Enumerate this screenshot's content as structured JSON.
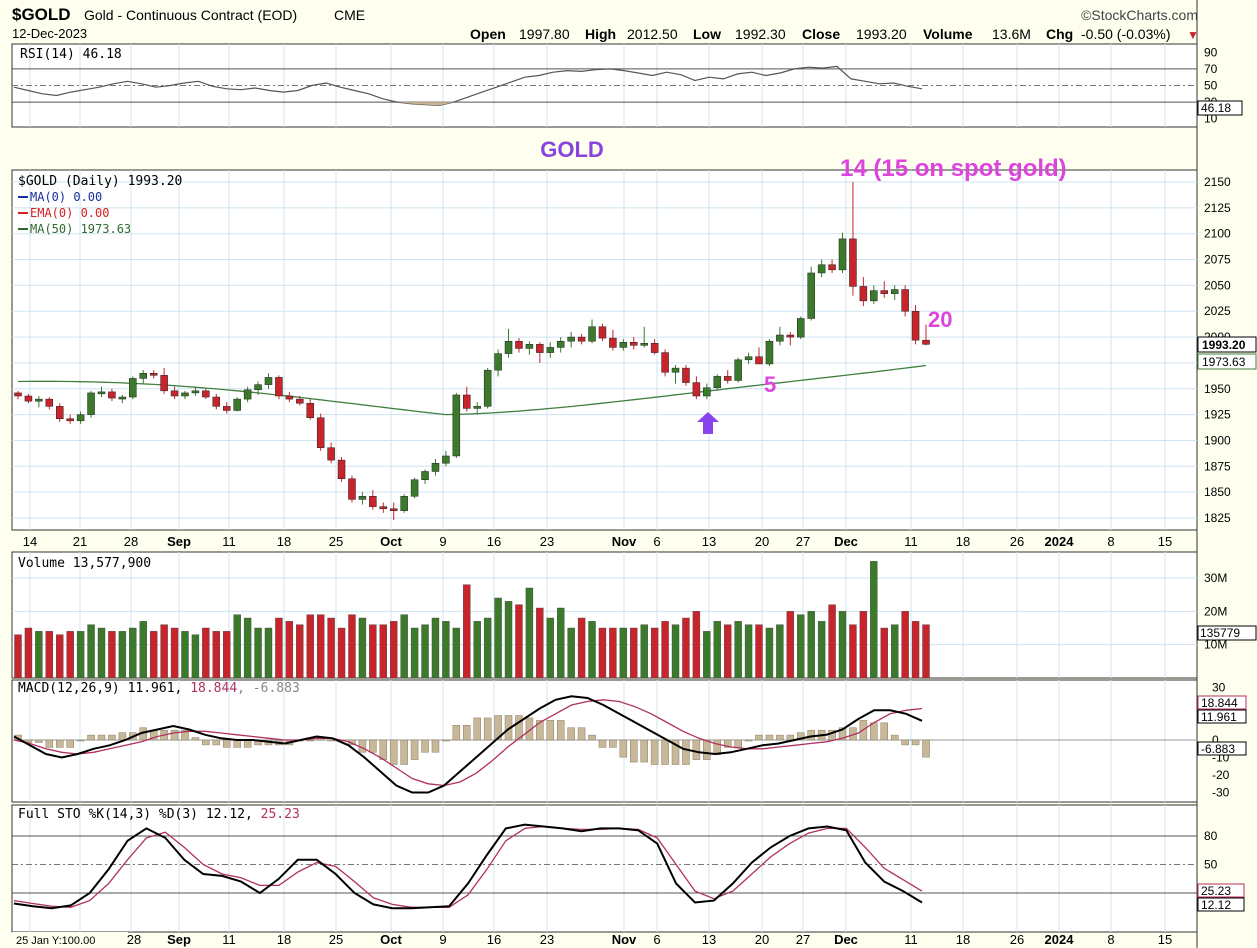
{
  "header": {
    "symbol": "$GOLD",
    "name": "Gold - Continuous Contract (EOD)",
    "exchange": "CME",
    "date": "12-Dec-2023",
    "brand": "©StockCharts.com",
    "open_label": "Open",
    "open": "1997.80",
    "high_label": "High",
    "high": "2012.50",
    "low_label": "Low",
    "low": "1992.30",
    "close_label": "Close",
    "close": "1993.20",
    "volume_label": "Volume",
    "volume": "13.6M",
    "chg_label": "Chg",
    "chg": "-0.50 (-0.03%)",
    "chg_arrow": "▼"
  },
  "annotations": {
    "gold_label": "GOLD",
    "peak_label": "14 (15 on spot gold)",
    "count_20": "20",
    "count_5": "5"
  },
  "rsi": {
    "label": "RSI(14) 46.18",
    "current_tag": "46.18",
    "axis": [
      "90",
      "70",
      "50",
      "30",
      "10"
    ],
    "overbought": 70,
    "oversold": 30
  },
  "price": {
    "legend": [
      "$GOLD (Daily) 1993.20",
      "MA(0) 0.00",
      "EMA(0) 0.00",
      "MA(50) 1973.63"
    ],
    "legend_colors": [
      "#000000",
      "#1a2e9c",
      "#d42020",
      "#2f6b2f"
    ],
    "axis": [
      "2150",
      "2125",
      "2100",
      "2075",
      "2050",
      "2025",
      "2000",
      "1975",
      "1950",
      "1925",
      "1900",
      "1875",
      "1850",
      "1825"
    ],
    "close_tag": "1993.20",
    "ma_tag": "1973.63",
    "up_color": "#3b7a2a",
    "down_color": "#c8242b"
  },
  "dates": [
    "14",
    "21",
    "28",
    "Sep",
    "11",
    "18",
    "25",
    "Oct",
    "9",
    "16",
    "23",
    "Nov",
    "6",
    "13",
    "20",
    "27",
    "Dec",
    "11",
    "18",
    "26",
    "2024",
    "8",
    "15"
  ],
  "bottom_dates": [
    "28",
    "Sep",
    "11",
    "18",
    "25",
    "Oct",
    "9",
    "16",
    "23",
    "Nov",
    "6",
    "13",
    "20",
    "27",
    "Dec",
    "11",
    "18",
    "26",
    "2024",
    "8",
    "15"
  ],
  "bottom_note": "25 Jan Y:100.00",
  "volume": {
    "label": "Volume 13,577,900",
    "axis": [
      "30M",
      "20M",
      "10M"
    ],
    "current_tag": "135779"
  },
  "macd": {
    "label_a": "MACD(12,26,9) 11.961, ",
    "label_b": "18.844",
    "label_c": ", -6.883",
    "axis": [
      "30",
      "0",
      "-10",
      "-20",
      "-30"
    ],
    "tags": [
      "18.844",
      "11.961",
      "-6.883"
    ]
  },
  "sto": {
    "label_a": "Full STO %K(14,3) %D(3) 12.12, ",
    "label_b": "25.23",
    "axis": [
      "80",
      "50",
      "20"
    ],
    "tags": [
      "25.23",
      "12.12"
    ]
  },
  "chart_data": {
    "type": "candlestick",
    "title": "$GOLD Gold - Continuous Contract (EOD) CME",
    "candles_ohlc": [
      [
        1946,
        1948,
        1940,
        1943
      ],
      [
        1943,
        1945,
        1936,
        1938
      ],
      [
        1938,
        1943,
        1932,
        1940
      ],
      [
        1940,
        1942,
        1930,
        1933
      ],
      [
        1933,
        1936,
        1918,
        1921
      ],
      [
        1921,
        1925,
        1916,
        1919
      ],
      [
        1919,
        1928,
        1916,
        1925
      ],
      [
        1925,
        1948,
        1922,
        1946
      ],
      [
        1946,
        1952,
        1942,
        1947
      ],
      [
        1947,
        1950,
        1938,
        1941
      ],
      [
        1941,
        1944,
        1936,
        1942
      ],
      [
        1942,
        1962,
        1940,
        1960
      ],
      [
        1960,
        1968,
        1955,
        1965
      ],
      [
        1965,
        1968,
        1960,
        1963
      ],
      [
        1963,
        1970,
        1945,
        1948
      ],
      [
        1948,
        1952,
        1940,
        1943
      ],
      [
        1943,
        1948,
        1940,
        1946
      ],
      [
        1946,
        1952,
        1943,
        1948
      ],
      [
        1948,
        1950,
        1940,
        1942
      ],
      [
        1942,
        1945,
        1930,
        1933
      ],
      [
        1933,
        1937,
        1926,
        1929
      ],
      [
        1929,
        1942,
        1928,
        1940
      ],
      [
        1940,
        1952,
        1937,
        1949
      ],
      [
        1949,
        1957,
        1944,
        1954
      ],
      [
        1954,
        1965,
        1950,
        1961
      ],
      [
        1961,
        1963,
        1940,
        1943
      ],
      [
        1943,
        1947,
        1937,
        1940
      ],
      [
        1940,
        1943,
        1934,
        1936
      ],
      [
        1936,
        1940,
        1920,
        1922
      ],
      [
        1922,
        1926,
        1890,
        1893
      ],
      [
        1893,
        1898,
        1878,
        1881
      ],
      [
        1881,
        1884,
        1860,
        1863
      ],
      [
        1863,
        1866,
        1840,
        1843
      ],
      [
        1843,
        1850,
        1838,
        1846
      ],
      [
        1846,
        1852,
        1833,
        1836
      ],
      [
        1836,
        1840,
        1830,
        1834
      ],
      [
        1834,
        1840,
        1823,
        1832
      ],
      [
        1832,
        1848,
        1830,
        1846
      ],
      [
        1846,
        1864,
        1844,
        1862
      ],
      [
        1862,
        1872,
        1858,
        1870
      ],
      [
        1870,
        1882,
        1866,
        1878
      ],
      [
        1878,
        1890,
        1875,
        1885
      ],
      [
        1885,
        1946,
        1883,
        1944
      ],
      [
        1944,
        1952,
        1928,
        1931
      ],
      [
        1931,
        1937,
        1925,
        1933
      ],
      [
        1933,
        1970,
        1931,
        1968
      ],
      [
        1968,
        1988,
        1962,
        1984
      ],
      [
        1984,
        2008,
        1980,
        1996
      ],
      [
        1996,
        1999,
        1985,
        1989
      ],
      [
        1989,
        1996,
        1983,
        1993
      ],
      [
        1993,
        1995,
        1975,
        1985
      ],
      [
        1985,
        1995,
        1980,
        1990
      ],
      [
        1990,
        2000,
        1985,
        1996
      ],
      [
        1996,
        2005,
        1990,
        2000
      ],
      [
        2000,
        2003,
        1993,
        1996
      ],
      [
        1996,
        2017,
        1994,
        2010
      ],
      [
        2010,
        2013,
        1996,
        1999
      ],
      [
        1999,
        2007,
        1987,
        1990
      ],
      [
        1990,
        1998,
        1987,
        1995
      ],
      [
        1995,
        2000,
        1988,
        1992
      ],
      [
        1992,
        2010,
        1990,
        1994
      ],
      [
        1994,
        1998,
        1983,
        1985
      ],
      [
        1985,
        1988,
        1962,
        1966
      ],
      [
        1966,
        1973,
        1955,
        1970
      ],
      [
        1970,
        1973,
        1953,
        1956
      ],
      [
        1956,
        1962,
        1940,
        1943
      ],
      [
        1943,
        1955,
        1940,
        1951
      ],
      [
        1951,
        1964,
        1948,
        1962
      ],
      [
        1962,
        1968,
        1955,
        1958
      ],
      [
        1958,
        1980,
        1956,
        1978
      ],
      [
        1978,
        1985,
        1974,
        1981
      ],
      [
        1981,
        1990,
        1976,
        1974
      ],
      [
        1974,
        1998,
        1972,
        1996
      ],
      [
        1996,
        2010,
        1992,
        2002
      ],
      [
        2002,
        2005,
        1992,
        2000
      ],
      [
        2000,
        2020,
        1998,
        2018
      ],
      [
        2018,
        2068,
        2016,
        2062
      ],
      [
        2062,
        2075,
        2058,
        2070
      ],
      [
        2070,
        2075,
        2062,
        2065
      ],
      [
        2065,
        2101,
        2062,
        2095
      ],
      [
        2095,
        2150,
        2040,
        2049
      ],
      [
        2049,
        2058,
        2030,
        2035
      ],
      [
        2035,
        2050,
        2032,
        2045
      ],
      [
        2045,
        2054,
        2038,
        2042
      ],
      [
        2042,
        2050,
        2036,
        2046
      ],
      [
        2046,
        2050,
        2020,
        2025
      ],
      [
        2025,
        2031,
        1993,
        1997
      ],
      [
        1997,
        2012,
        1992,
        1993
      ]
    ],
    "ma50_start": 1957,
    "ma50_end": 1973.63,
    "ma50_min": 1927,
    "rsi_current": 46.18,
    "volume_current": 13577900,
    "macd_current": {
      "macd": 11.961,
      "signal": 18.844,
      "hist": -6.883
    },
    "sto_current": {
      "k": 12.12,
      "d": 25.23
    }
  }
}
